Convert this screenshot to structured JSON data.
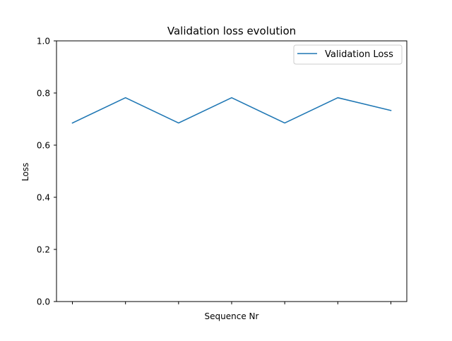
{
  "chart_data": {
    "type": "line",
    "title": "Validation loss evolution",
    "xlabel": "Sequence Nr",
    "ylabel": "Loss",
    "x": [
      0,
      1,
      2,
      3,
      4,
      5,
      6
    ],
    "xlim": [
      -0.3,
      6.3
    ],
    "ylim": [
      0.0,
      1.0
    ],
    "yticks": [
      0.0,
      0.2,
      0.4,
      0.6,
      0.8,
      1.0
    ],
    "ytick_labels": [
      "0.0",
      "0.2",
      "0.4",
      "0.6",
      "0.8",
      "1.0"
    ],
    "xtick_labels": [
      "",
      "",
      "",
      "",
      "",
      "",
      ""
    ],
    "grid": false,
    "legend_position": "top-right",
    "series": [
      {
        "name": "Validation Loss",
        "color": "#1f77b4",
        "values": [
          0.685,
          0.782,
          0.685,
          0.782,
          0.685,
          0.782,
          0.733
        ]
      }
    ]
  }
}
